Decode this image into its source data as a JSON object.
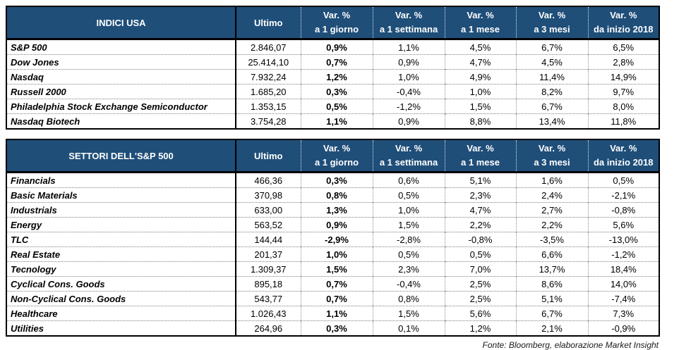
{
  "colors": {
    "header_bg": "#1f4e79",
    "header_text": "#ffffff",
    "border": "#000000"
  },
  "column_headers": {
    "ultimo": "Ultimo",
    "vars": [
      {
        "line1": "Var. %",
        "line2": "a 1 giorno"
      },
      {
        "line1": "Var. %",
        "line2": "a 1 settimana"
      },
      {
        "line1": "Var. %",
        "line2": "a 1 mese"
      },
      {
        "line1": "Var. %",
        "line2": "a 3 mesi"
      },
      {
        "line1": "Var. %",
        "line2": "da inizio 2018"
      }
    ]
  },
  "chart_data": [
    {
      "type": "table",
      "title": "INDICI USA",
      "columns": [
        "INDICI USA",
        "Ultimo",
        "Var. % a 1 giorno",
        "Var. % a 1 settimana",
        "Var. % a 1 mese",
        "Var. % a 3 mesi",
        "Var. % da inizio 2018"
      ],
      "rows": [
        [
          "S&P 500",
          "2.846,07",
          "0,9%",
          "1,1%",
          "4,5%",
          "6,7%",
          "6,5%"
        ],
        [
          "Dow Jones",
          "25.414,10",
          "0,7%",
          "0,9%",
          "4,7%",
          "4,5%",
          "2,8%"
        ],
        [
          "Nasdaq",
          "7.932,24",
          "1,2%",
          "1,0%",
          "4,9%",
          "11,4%",
          "14,9%"
        ],
        [
          "Russell 2000",
          "1.685,20",
          "0,3%",
          "-0,4%",
          "1,0%",
          "8,2%",
          "9,7%"
        ],
        [
          "Philadelphia Stock Exchange Semiconductor",
          "1.353,15",
          "0,5%",
          "-1,2%",
          "1,5%",
          "6,7%",
          "8,0%"
        ],
        [
          "Nasdaq Biotech",
          "3.754,28",
          "1,1%",
          "0,9%",
          "8,8%",
          "13,4%",
          "11,8%"
        ]
      ]
    },
    {
      "type": "table",
      "title": "SETTORI DELL'S&P 500",
      "columns": [
        "SETTORI DELL'S&P 500",
        "Ultimo",
        "Var. % a 1 giorno",
        "Var. % a 1 settimana",
        "Var. % a 1 mese",
        "Var. % a 3 mesi",
        "Var. % da inizio 2018"
      ],
      "rows": [
        [
          "Financials",
          "466,36",
          "0,3%",
          "0,6%",
          "5,1%",
          "1,6%",
          "0,5%"
        ],
        [
          "Basic Materials",
          "370,98",
          "0,8%",
          "0,5%",
          "2,3%",
          "2,4%",
          "-2,1%"
        ],
        [
          "Industrials",
          "633,00",
          "1,3%",
          "1,0%",
          "4,7%",
          "2,7%",
          "-0,8%"
        ],
        [
          "Energy",
          "563,52",
          "0,9%",
          "1,5%",
          "2,2%",
          "2,2%",
          "5,6%"
        ],
        [
          "TLC",
          "144,44",
          "-2,9%",
          "-2,8%",
          "-0,8%",
          "-3,5%",
          "-13,0%"
        ],
        [
          "Real Estate",
          "201,37",
          "1,0%",
          "0,5%",
          "0,5%",
          "6,6%",
          "-1,2%"
        ],
        [
          "Tecnology",
          "1.309,37",
          "1,5%",
          "2,3%",
          "7,0%",
          "13,7%",
          "18,4%"
        ],
        [
          "Cyclical Cons. Goods",
          "895,18",
          "0,7%",
          "-0,4%",
          "2,5%",
          "8,6%",
          "14,0%"
        ],
        [
          "Non-Cyclical Cons. Goods",
          "543,77",
          "0,7%",
          "0,8%",
          "2,5%",
          "5,1%",
          "-7,4%"
        ],
        [
          "Healthcare",
          "1.026,43",
          "1,1%",
          "1,5%",
          "5,6%",
          "6,7%",
          "7,3%"
        ],
        [
          "Utilities",
          "264,96",
          "0,3%",
          "0,1%",
          "1,2%",
          "2,1%",
          "-0,9%"
        ]
      ]
    }
  ],
  "footer": {
    "source": "Fonte: Bloomberg, elaborazione Market Insight"
  }
}
